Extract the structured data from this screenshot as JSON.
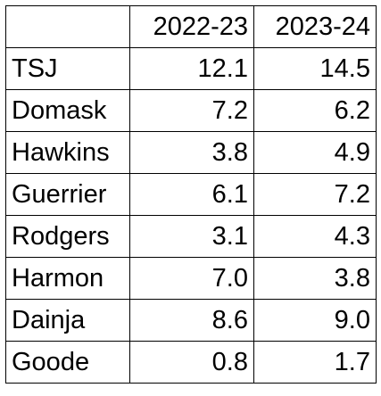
{
  "table": {
    "columns": [
      "2022-23",
      "2023-24"
    ],
    "rows": [
      {
        "name": "TSJ",
        "values": [
          "12.1",
          "14.5"
        ]
      },
      {
        "name": "Domask",
        "values": [
          "7.2",
          "6.2"
        ]
      },
      {
        "name": "Hawkins",
        "values": [
          "3.8",
          "4.9"
        ]
      },
      {
        "name": "Guerrier",
        "values": [
          "6.1",
          "7.2"
        ]
      },
      {
        "name": "Rodgers",
        "values": [
          "3.1",
          "4.3"
        ]
      },
      {
        "name": "Harmon",
        "values": [
          "7.0",
          "3.8"
        ]
      },
      {
        "name": "Dainja",
        "values": [
          "8.6",
          "9.0"
        ]
      },
      {
        "name": "Goode",
        "values": [
          "0.8",
          "1.7"
        ]
      }
    ]
  }
}
